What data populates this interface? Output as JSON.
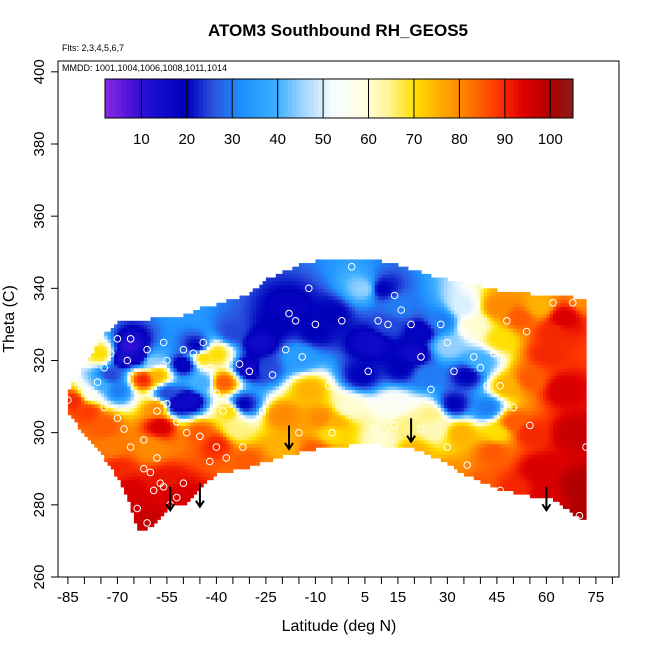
{
  "chart_data": {
    "type": "heatmap",
    "title": "ATOM3 Southbound RH_GEOS5",
    "subtitle_flights": "Flts: 2,3,4,5,6,7",
    "subtitle_dates": "MMDD: 1001,1004,1006,1008,1011,1014",
    "xlabel": "Latitude (deg N)",
    "ylabel": "Theta (C)",
    "xlim": [
      -88,
      82
    ],
    "ylim": [
      260,
      403
    ],
    "x_tick_labels": [
      -85,
      -70,
      -55,
      -40,
      -25,
      -10,
      5,
      15,
      30,
      45,
      60,
      75
    ],
    "x_minor_ticks": [
      -85,
      -80,
      -75,
      -70,
      -65,
      -60,
      -55,
      -50,
      -45,
      -40,
      -35,
      -30,
      -25,
      -20,
      -15,
      -10,
      -5,
      0,
      5,
      10,
      15,
      20,
      25,
      30,
      35,
      40,
      45,
      50,
      55,
      60,
      65,
      70,
      75,
      80
    ],
    "y_ticks": [
      260,
      280,
      300,
      320,
      340,
      360,
      380,
      400
    ],
    "colorbar": {
      "ticks": [
        10,
        20,
        30,
        40,
        50,
        60,
        70,
        80,
        90,
        100
      ],
      "range": [
        2,
        105
      ],
      "stops": [
        {
          "v": 2,
          "color": "#8a2be2"
        },
        {
          "v": 8,
          "color": "#4b0fd9"
        },
        {
          "v": 12,
          "color": "#1a0fcf"
        },
        {
          "v": 20,
          "color": "#0000bb"
        },
        {
          "v": 26,
          "color": "#2a55e0"
        },
        {
          "v": 32,
          "color": "#1e90ff"
        },
        {
          "v": 40,
          "color": "#3fb0ff"
        },
        {
          "v": 46,
          "color": "#a7d8ff"
        },
        {
          "v": 52,
          "color": "#f5fcff"
        },
        {
          "v": 58,
          "color": "#ffffe8"
        },
        {
          "v": 64,
          "color": "#fff6a0"
        },
        {
          "v": 70,
          "color": "#ffe000"
        },
        {
          "v": 76,
          "color": "#ffaa00"
        },
        {
          "v": 82,
          "color": "#ff7a00"
        },
        {
          "v": 88,
          "color": "#ff3a00"
        },
        {
          "v": 94,
          "color": "#e00000"
        },
        {
          "v": 100,
          "color": "#b00000"
        },
        {
          "v": 105,
          "color": "#8b1a1a"
        }
      ]
    },
    "samples": [
      [
        -83,
        309,
        90
      ],
      [
        -79,
        306,
        88
      ],
      [
        -74,
        302,
        85
      ],
      [
        -72,
        296,
        82
      ],
      [
        -70,
        290,
        90
      ],
      [
        -67,
        284,
        95
      ],
      [
        -65,
        279,
        96
      ],
      [
        -62,
        276,
        97
      ],
      [
        -78,
        311,
        55
      ],
      [
        -75,
        313,
        40
      ],
      [
        -72,
        316,
        25
      ],
      [
        -70,
        312,
        30
      ],
      [
        -68,
        321,
        12
      ],
      [
        -66,
        324,
        10
      ],
      [
        -63,
        321,
        15
      ],
      [
        -60,
        320,
        45
      ],
      [
        -58,
        316,
        75
      ],
      [
        -55,
        311,
        25
      ],
      [
        -52,
        308,
        15
      ],
      [
        -48,
        309,
        15
      ],
      [
        -50,
        319,
        18
      ],
      [
        -46,
        324,
        20
      ],
      [
        -44,
        321,
        70
      ],
      [
        -40,
        322,
        70
      ],
      [
        -38,
        314,
        85
      ],
      [
        -36,
        306,
        70
      ],
      [
        -34,
        301,
        65
      ],
      [
        -32,
        308,
        20
      ],
      [
        -30,
        318,
        15
      ],
      [
        -27,
        325,
        15
      ],
      [
        -22,
        330,
        20
      ],
      [
        -18,
        334,
        18
      ],
      [
        -15,
        321,
        35
      ],
      [
        -12,
        312,
        75
      ],
      [
        -8,
        304,
        80
      ],
      [
        -4,
        303,
        75
      ],
      [
        0,
        307,
        60
      ],
      [
        4,
        316,
        20
      ],
      [
        7,
        325,
        15
      ],
      [
        10,
        340,
        20
      ],
      [
        12,
        330,
        25
      ],
      [
        14,
        308,
        55
      ],
      [
        16,
        318,
        20
      ],
      [
        18,
        302,
        65
      ],
      [
        20,
        322,
        15
      ],
      [
        22,
        328,
        18
      ],
      [
        24,
        316,
        30
      ],
      [
        26,
        301,
        62
      ],
      [
        28,
        331,
        30
      ],
      [
        30,
        324,
        45
      ],
      [
        32,
        308,
        20
      ],
      [
        34,
        300,
        75
      ],
      [
        36,
        316,
        20
      ],
      [
        38,
        330,
        60
      ],
      [
        40,
        320,
        40
      ],
      [
        42,
        307,
        30
      ],
      [
        44,
        295,
        85
      ],
      [
        46,
        326,
        70
      ],
      [
        48,
        313,
        75
      ],
      [
        50,
        303,
        85
      ],
      [
        52,
        332,
        85
      ],
      [
        55,
        300,
        90
      ],
      [
        58,
        290,
        95
      ],
      [
        60,
        322,
        90
      ],
      [
        62,
        328,
        90
      ],
      [
        65,
        312,
        95
      ],
      [
        68,
        300,
        97
      ],
      [
        70,
        285,
        100
      ],
      [
        72,
        278,
        100
      ],
      [
        72,
        337,
        80
      ],
      [
        -75,
        322,
        70
      ],
      [
        -62,
        315,
        90
      ],
      [
        -57,
        302,
        95
      ],
      [
        -55,
        287,
        92
      ],
      [
        -52,
        283,
        95
      ],
      [
        -48,
        281,
        95
      ],
      [
        -40,
        297,
        90
      ],
      [
        -30,
        292,
        85
      ],
      [
        -25,
        290,
        80
      ],
      [
        -20,
        296,
        75
      ],
      [
        -10,
        295,
        85
      ],
      [
        0,
        290,
        80
      ],
      [
        10,
        292,
        75
      ],
      [
        20,
        295,
        75
      ],
      [
        30,
        288,
        80
      ],
      [
        40,
        285,
        85
      ],
      [
        50,
        284,
        90
      ],
      [
        60,
        282,
        95
      ],
      [
        -60,
        296,
        80
      ],
      [
        -58,
        307,
        80
      ],
      [
        -45,
        300,
        85
      ],
      [
        -20,
        305,
        80
      ],
      [
        -5,
        300,
        70
      ],
      [
        10,
        298,
        60
      ],
      [
        25,
        305,
        65
      ],
      [
        45,
        300,
        70
      ],
      [
        55,
        315,
        85
      ],
      [
        58,
        335,
        75
      ],
      [
        -35,
        328,
        25
      ],
      [
        -10,
        328,
        20
      ],
      [
        15,
        335,
        30
      ],
      [
        5,
        340,
        45
      ],
      [
        -5,
        333,
        20
      ],
      [
        -25,
        318,
        25
      ],
      [
        -44,
        314,
        40
      ],
      [
        35,
        335,
        50
      ],
      [
        45,
        335,
        80
      ],
      [
        65,
        332,
        95
      ]
    ],
    "points": [
      [
        -85,
        309
      ],
      [
        -76,
        314
      ],
      [
        -74,
        318
      ],
      [
        -72,
        322
      ],
      [
        -70,
        326
      ],
      [
        -67,
        320
      ],
      [
        -66,
        326
      ],
      [
        -61,
        323
      ],
      [
        -56,
        325
      ],
      [
        -55,
        320
      ],
      [
        -50,
        323
      ],
      [
        -47,
        322
      ],
      [
        -44,
        325
      ],
      [
        -42,
        318
      ],
      [
        -40,
        311
      ],
      [
        -38,
        306
      ],
      [
        -33,
        319
      ],
      [
        -30,
        317
      ],
      [
        -26,
        306
      ],
      [
        -23,
        316
      ],
      [
        -19,
        323
      ],
      [
        -18,
        333
      ],
      [
        -16,
        331
      ],
      [
        -14,
        321
      ],
      [
        -12,
        340
      ],
      [
        -10,
        330
      ],
      [
        -6,
        313
      ],
      [
        -2,
        331
      ],
      [
        1,
        346
      ],
      [
        6,
        317
      ],
      [
        9,
        331
      ],
      [
        12,
        330
      ],
      [
        14,
        338
      ],
      [
        16,
        334
      ],
      [
        19,
        330
      ],
      [
        22,
        321
      ],
      [
        25,
        312
      ],
      [
        28,
        330
      ],
      [
        30,
        325
      ],
      [
        32,
        317
      ],
      [
        35,
        328
      ],
      [
        38,
        321
      ],
      [
        40,
        318
      ],
      [
        42,
        313
      ],
      [
        44,
        322
      ],
      [
        46,
        313
      ],
      [
        48,
        331
      ],
      [
        50,
        307
      ],
      [
        54,
        328
      ],
      [
        58,
        339
      ],
      [
        62,
        336
      ],
      [
        68,
        336
      ],
      [
        -74,
        307
      ],
      [
        -70,
        304
      ],
      [
        -68,
        301
      ],
      [
        -66,
        296
      ],
      [
        -62,
        298
      ],
      [
        -60,
        289
      ],
      [
        -58,
        293
      ],
      [
        -56,
        285
      ],
      [
        -54,
        280
      ],
      [
        -50,
        286
      ],
      [
        -62,
        290
      ],
      [
        -59,
        284
      ],
      [
        -57,
        286
      ],
      [
        -52,
        282
      ],
      [
        -49,
        278
      ],
      [
        -61,
        275
      ],
      [
        -64,
        279
      ],
      [
        -58,
        306
      ],
      [
        -55,
        308
      ],
      [
        -52,
        303
      ],
      [
        -49,
        300
      ],
      [
        -45,
        299
      ],
      [
        -40,
        296
      ],
      [
        -32,
        296
      ],
      [
        -15,
        300
      ],
      [
        -5,
        300
      ],
      [
        8,
        301
      ],
      [
        14,
        302
      ],
      [
        22,
        301
      ],
      [
        30,
        296
      ],
      [
        36,
        291
      ],
      [
        46,
        284
      ],
      [
        55,
        302
      ],
      [
        70,
        277
      ],
      [
        72,
        296
      ],
      [
        -37,
        293
      ],
      [
        -42,
        292
      ]
    ],
    "arrows": [
      {
        "lat": -54,
        "theta": 285
      },
      {
        "lat": -45,
        "theta": 286
      },
      {
        "lat": -18,
        "theta": 302
      },
      {
        "lat": 19,
        "theta": 304
      },
      {
        "lat": 60,
        "theta": 285
      }
    ]
  }
}
